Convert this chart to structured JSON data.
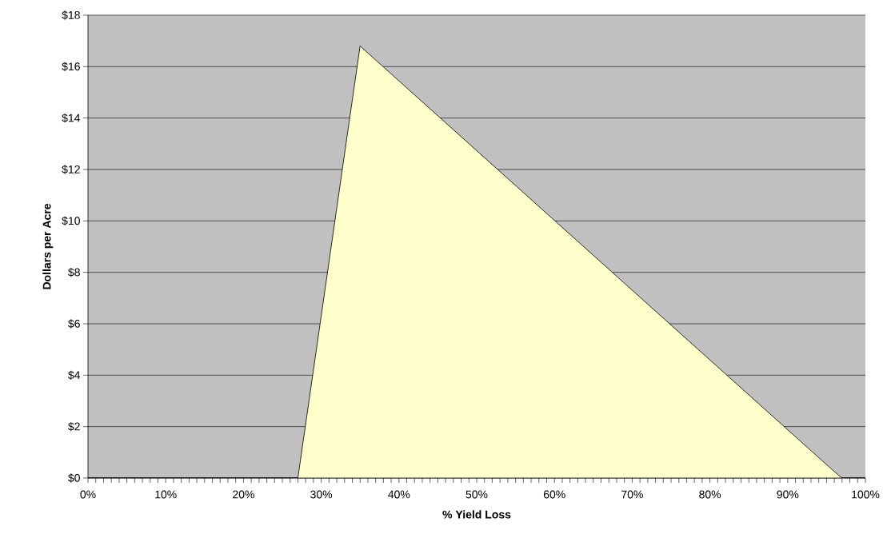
{
  "chart_data": {
    "type": "area",
    "xlabel": "% Yield Loss",
    "ylabel": "Dollars per Acre",
    "x": [
      0,
      27,
      35,
      96,
      97,
      100
    ],
    "series": [
      {
        "color": "#ffffcc",
        "values": [
          0,
          0,
          16.8,
          0.25,
          0,
          0
        ]
      }
    ],
    "xlim": [
      0,
      100
    ],
    "xticks": [
      {
        "value": 0,
        "label": "0%"
      },
      {
        "value": 10,
        "label": "10%"
      },
      {
        "value": 20,
        "label": "20%"
      },
      {
        "value": 30,
        "label": "30%"
      },
      {
        "value": 40,
        "label": "40%"
      },
      {
        "value": 50,
        "label": "50%"
      },
      {
        "value": 60,
        "label": "60%"
      },
      {
        "value": 70,
        "label": "70%"
      },
      {
        "value": 80,
        "label": "80%"
      },
      {
        "value": 90,
        "label": "90%"
      },
      {
        "value": 100,
        "label": "100%"
      }
    ],
    "ylim": [
      0,
      18
    ],
    "yticks": [
      {
        "value": 0,
        "label": "$0"
      },
      {
        "value": 2,
        "label": "$2"
      },
      {
        "value": 4,
        "label": "$4"
      },
      {
        "value": 6,
        "label": "$6"
      },
      {
        "value": 8,
        "label": "$8"
      },
      {
        "value": 10,
        "label": "$10"
      },
      {
        "value": 12,
        "label": "$12"
      },
      {
        "value": 14,
        "label": "$14"
      },
      {
        "value": 16,
        "label": "$16"
      },
      {
        "value": 18,
        "label": "$18"
      }
    ],
    "grid": "y"
  }
}
